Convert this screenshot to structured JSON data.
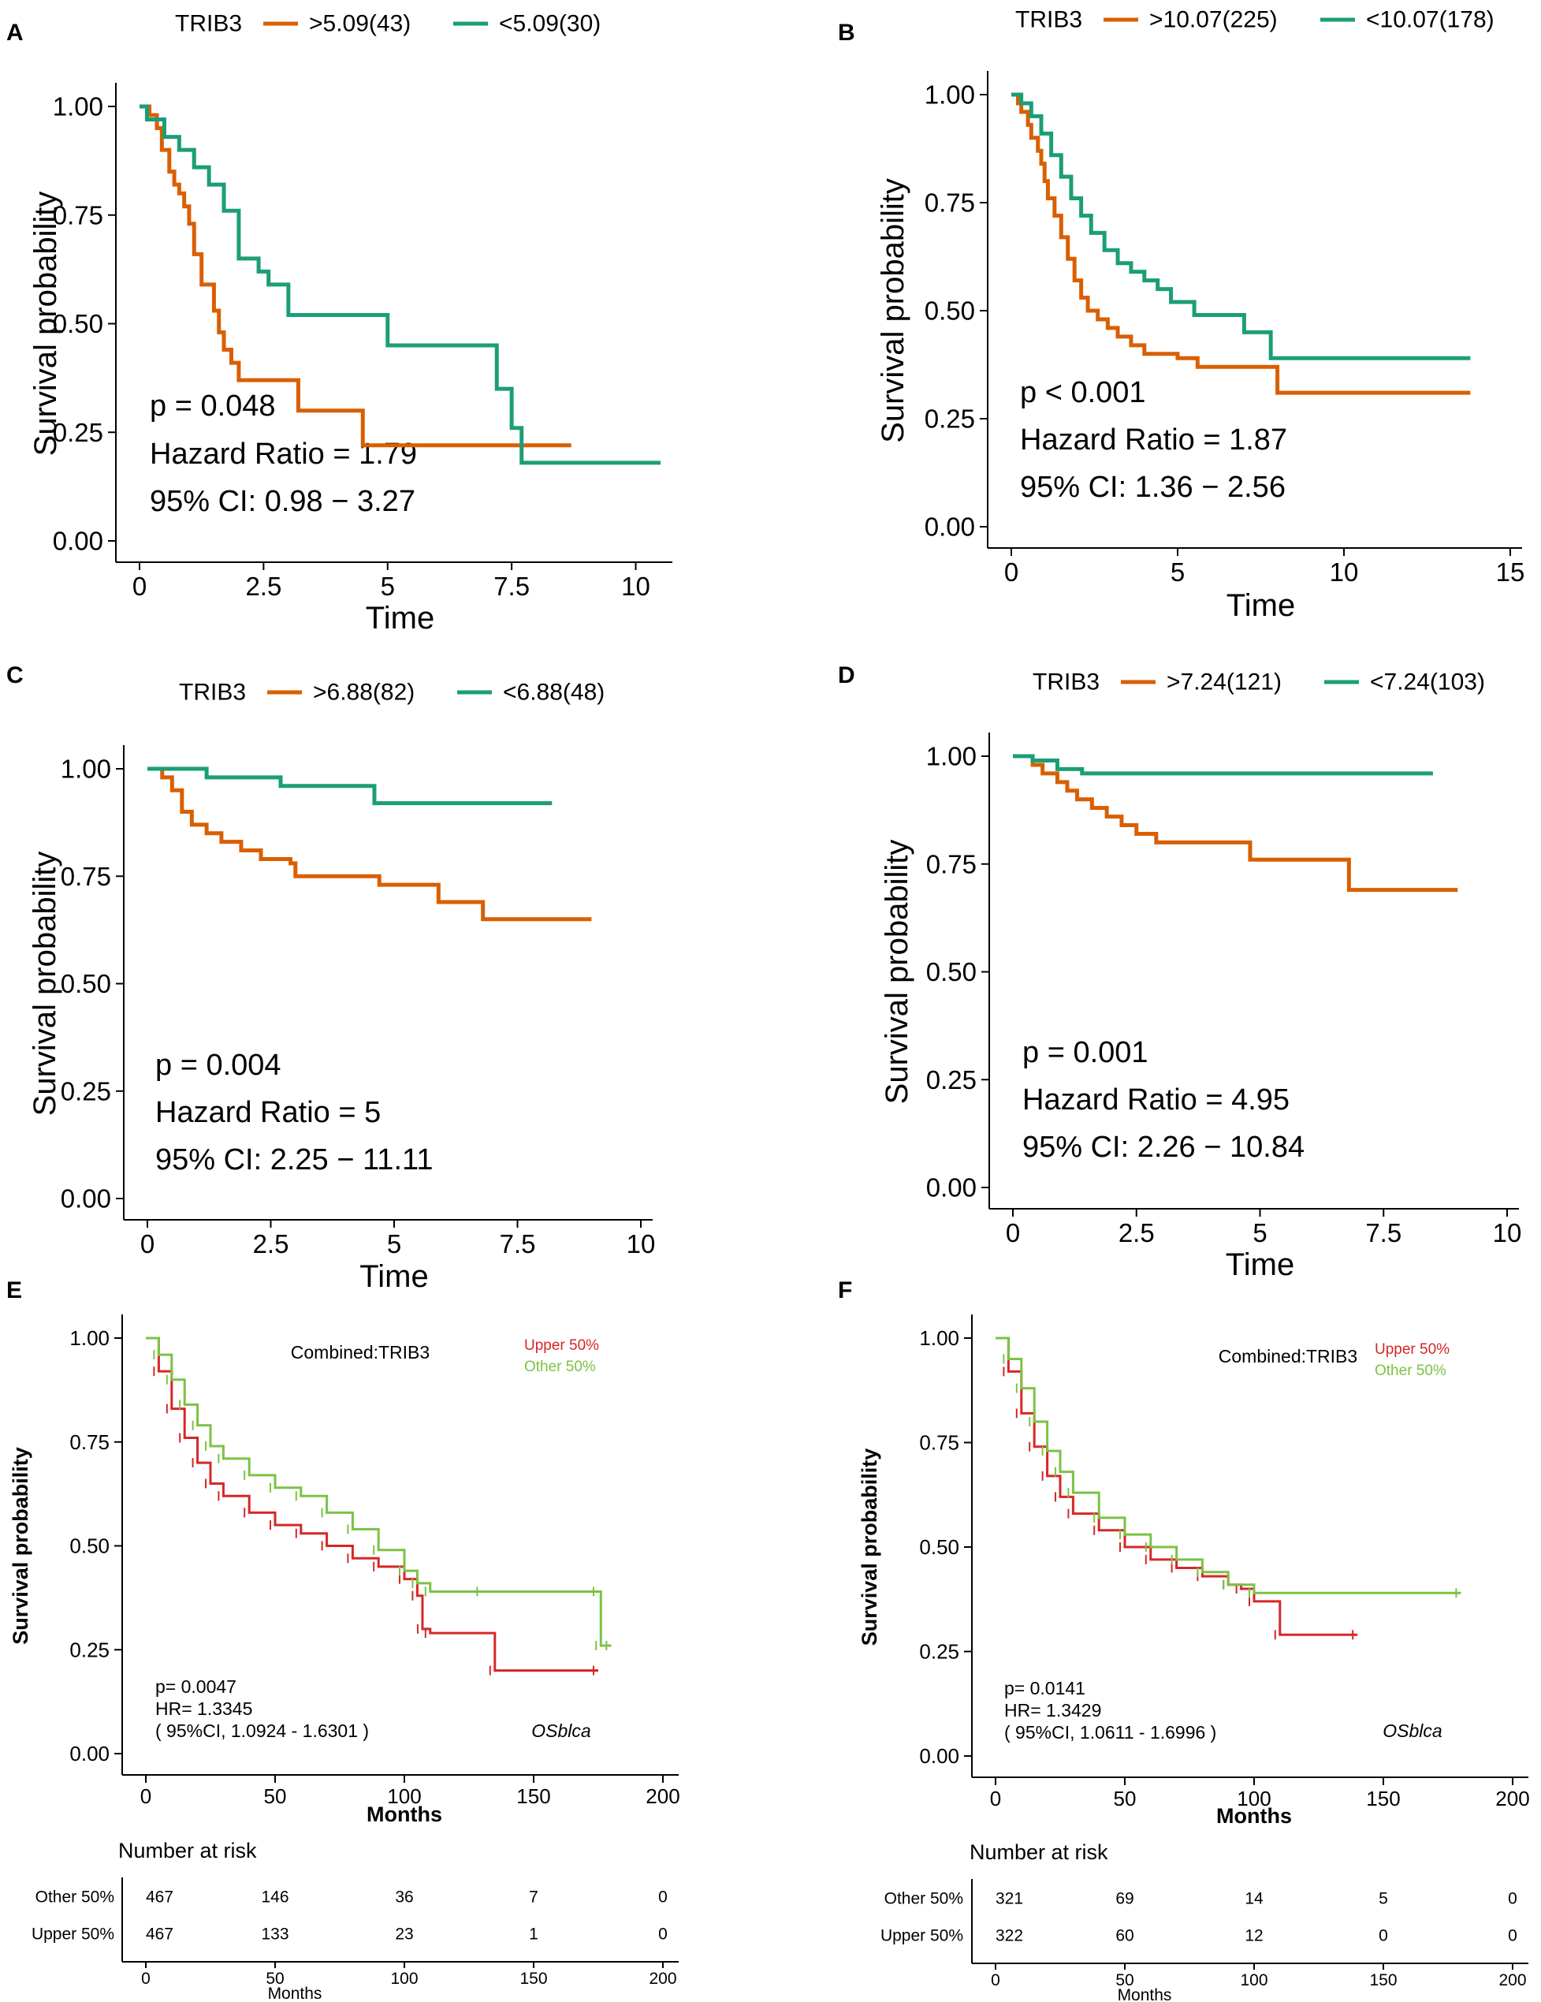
{
  "colors": {
    "high": "#D95F02",
    "low": "#1B9E77",
    "upper": "#D62728",
    "other": "#7CC243"
  },
  "chart_data": [
    {
      "panel": "A",
      "type": "line",
      "legend_title": "TRIB3",
      "series": [
        {
          "name": ">5.09(43)",
          "color": "#D95F02",
          "x": [
            0,
            0.2,
            0.35,
            0.45,
            0.6,
            0.7,
            0.8,
            0.9,
            1.0,
            1.1,
            1.25,
            1.5,
            1.6,
            1.7,
            1.85,
            2.0,
            2.2,
            2.5,
            3.2,
            4.5,
            8.7
          ],
          "y": [
            1.0,
            0.98,
            0.95,
            0.9,
            0.85,
            0.82,
            0.8,
            0.77,
            0.73,
            0.66,
            0.59,
            0.53,
            0.48,
            0.44,
            0.41,
            0.37,
            0.37,
            0.37,
            0.3,
            0.22,
            0.22
          ]
        },
        {
          "name": "<5.09(30)",
          "color": "#1B9E77",
          "x": [
            0,
            0.15,
            0.5,
            0.8,
            1.1,
            1.4,
            1.7,
            2.0,
            2.4,
            2.6,
            3.0,
            5.0,
            7.2,
            7.5,
            7.7,
            10.5
          ],
          "y": [
            1.0,
            0.97,
            0.93,
            0.9,
            0.86,
            0.82,
            0.76,
            0.65,
            0.62,
            0.59,
            0.52,
            0.45,
            0.35,
            0.26,
            0.18,
            0.18
          ]
        }
      ],
      "xlabel": "Time",
      "ylabel": "Survival probability",
      "xlim": [
        0,
        10.5
      ],
      "ylim": [
        0,
        1
      ],
      "xticks": [
        0,
        2.5,
        5,
        7.5,
        10
      ],
      "xtick_labels": [
        "0",
        "2.5",
        "5",
        "7.5",
        "10"
      ],
      "yticks": [
        0,
        0.25,
        0.5,
        0.75,
        1.0
      ],
      "ytick_labels": [
        "0.00",
        "0.25",
        "0.50",
        "0.75",
        "1.00"
      ],
      "annotations": [
        "p = 0.048",
        "Hazard Ratio = 1.79",
        "95% CI: 0.98 − 3.27"
      ]
    },
    {
      "panel": "B",
      "type": "line",
      "legend_title": "TRIB3",
      "series": [
        {
          "name": ">10.07(225)",
          "color": "#D95F02",
          "x": [
            0,
            0.2,
            0.3,
            0.5,
            0.6,
            0.8,
            0.9,
            1.0,
            1.1,
            1.3,
            1.5,
            1.7,
            1.9,
            2.1,
            2.3,
            2.6,
            2.9,
            3.2,
            3.6,
            4.0,
            5.0,
            5.6,
            8.0,
            13.8
          ],
          "y": [
            1.0,
            0.98,
            0.96,
            0.93,
            0.9,
            0.87,
            0.84,
            0.8,
            0.76,
            0.72,
            0.67,
            0.62,
            0.57,
            0.53,
            0.5,
            0.48,
            0.46,
            0.44,
            0.42,
            0.4,
            0.39,
            0.37,
            0.31,
            0.31
          ]
        },
        {
          "name": "<10.07(178)",
          "color": "#1B9E77",
          "x": [
            0,
            0.3,
            0.6,
            0.9,
            1.2,
            1.5,
            1.8,
            2.1,
            2.4,
            2.8,
            3.2,
            3.6,
            4.0,
            4.4,
            4.8,
            5.5,
            7.0,
            7.8,
            13.8
          ],
          "y": [
            1.0,
            0.98,
            0.95,
            0.91,
            0.86,
            0.81,
            0.76,
            0.72,
            0.68,
            0.64,
            0.61,
            0.59,
            0.57,
            0.55,
            0.52,
            0.49,
            0.45,
            0.39,
            0.39
          ]
        }
      ],
      "xlabel": "Time",
      "ylabel": "Survival probability",
      "xlim": [
        0,
        15
      ],
      "ylim": [
        0,
        1
      ],
      "xticks": [
        0,
        5,
        10,
        15
      ],
      "xtick_labels": [
        "0",
        "5",
        "10",
        "15"
      ],
      "yticks": [
        0,
        0.25,
        0.5,
        0.75,
        1.0
      ],
      "ytick_labels": [
        "0.00",
        "0.25",
        "0.50",
        "0.75",
        "1.00"
      ],
      "annotations": [
        "p < 0.001",
        "Hazard Ratio = 1.87",
        "95% CI: 1.36 − 2.56"
      ]
    },
    {
      "panel": "C",
      "type": "line",
      "legend_title": "TRIB3",
      "series": [
        {
          "name": ">6.88(82)",
          "color": "#D95F02",
          "x": [
            0,
            0.3,
            0.5,
            0.7,
            0.9,
            1.2,
            1.5,
            1.9,
            2.3,
            2.9,
            3.0,
            4.7,
            5.9,
            6.8,
            9.0
          ],
          "y": [
            1.0,
            0.98,
            0.95,
            0.9,
            0.87,
            0.85,
            0.83,
            0.81,
            0.79,
            0.78,
            0.75,
            0.73,
            0.69,
            0.65,
            0.65
          ]
        },
        {
          "name": "<6.88(48)",
          "color": "#1B9E77",
          "x": [
            0,
            1.2,
            2.7,
            4.6,
            8.2
          ],
          "y": [
            1.0,
            0.98,
            0.96,
            0.92,
            0.92
          ]
        }
      ],
      "xlabel": "Time",
      "ylabel": "Survival probability",
      "xlim": [
        0,
        10
      ],
      "ylim": [
        0,
        1
      ],
      "xticks": [
        0,
        2.5,
        5,
        7.5,
        10
      ],
      "xtick_labels": [
        "0",
        "2.5",
        "5",
        "7.5",
        "10"
      ],
      "yticks": [
        0,
        0.25,
        0.5,
        0.75,
        1.0
      ],
      "ytick_labels": [
        "0.00",
        "0.25",
        "0.50",
        "0.75",
        "1.00"
      ],
      "annotations": [
        "p = 0.004",
        "Hazard Ratio = 5",
        "95% CI: 2.25 − 11.11"
      ]
    },
    {
      "panel": "D",
      "type": "line",
      "legend_title": "TRIB3",
      "series": [
        {
          "name": ">7.24(121)",
          "color": "#D95F02",
          "x": [
            0,
            0.4,
            0.6,
            0.9,
            1.1,
            1.3,
            1.6,
            1.9,
            2.2,
            2.5,
            2.9,
            3.2,
            4.8,
            6.8,
            9.0
          ],
          "y": [
            1.0,
            0.98,
            0.96,
            0.94,
            0.92,
            0.9,
            0.88,
            0.86,
            0.84,
            0.82,
            0.8,
            0.8,
            0.76,
            0.69,
            0.69
          ]
        },
        {
          "name": "<7.24(103)",
          "color": "#1B9E77",
          "x": [
            0,
            0.4,
            0.9,
            1.4,
            8.5
          ],
          "y": [
            1.0,
            0.99,
            0.97,
            0.96,
            0.96
          ]
        }
      ],
      "xlabel": "Time",
      "ylabel": "Survival probability",
      "xlim": [
        0,
        10
      ],
      "ylim": [
        0,
        1
      ],
      "xticks": [
        0,
        2.5,
        5,
        7.5,
        10
      ],
      "xtick_labels": [
        "0",
        "2.5",
        "5",
        "7.5",
        "10"
      ],
      "yticks": [
        0,
        0.25,
        0.5,
        0.75,
        1.0
      ],
      "ytick_labels": [
        "0.00",
        "0.25",
        "0.50",
        "0.75",
        "1.00"
      ],
      "annotations": [
        "p = 0.001",
        "Hazard Ratio = 4.95",
        "95% CI: 2.26 − 10.84"
      ]
    },
    {
      "panel": "E",
      "type": "line",
      "title": "Combined:TRIB3",
      "dataset_label": "OSblca",
      "series": [
        {
          "name": "Upper 50%",
          "color": "#D62728",
          "x": [
            0,
            5,
            10,
            15,
            20,
            25,
            30,
            40,
            50,
            60,
            70,
            80,
            90,
            100,
            105,
            107,
            110,
            135,
            175
          ],
          "y": [
            1.0,
            0.92,
            0.83,
            0.76,
            0.7,
            0.65,
            0.62,
            0.58,
            0.55,
            0.53,
            0.5,
            0.47,
            0.45,
            0.42,
            0.38,
            0.3,
            0.29,
            0.2,
            0.2
          ]
        },
        {
          "name": "Other  50%",
          "color": "#7CC243",
          "x": [
            0,
            5,
            10,
            15,
            20,
            25,
            30,
            40,
            50,
            60,
            70,
            80,
            90,
            100,
            105,
            110,
            130,
            175,
            176,
            180
          ],
          "y": [
            1.0,
            0.96,
            0.9,
            0.84,
            0.79,
            0.74,
            0.71,
            0.67,
            0.64,
            0.62,
            0.58,
            0.54,
            0.49,
            0.44,
            0.41,
            0.39,
            0.39,
            0.39,
            0.26,
            0.26
          ]
        }
      ],
      "xlabel": "Months",
      "ylabel": "Survival probability",
      "xlim": [
        0,
        200
      ],
      "ylim": [
        0,
        1
      ],
      "xticks": [
        0,
        50,
        100,
        150,
        200
      ],
      "xtick_labels": [
        "0",
        "50",
        "100",
        "150",
        "200"
      ],
      "yticks": [
        0,
        0.25,
        0.5,
        0.75,
        1.0
      ],
      "ytick_labels": [
        "0.00",
        "0.25",
        "0.50",
        "0.75",
        "1.00"
      ],
      "annotations": [
        "p= 0.0047",
        "HR= 1.3345",
        "( 95%CI, 1.0924 - 1.6301 )"
      ],
      "risk_table": {
        "title": "Number at risk",
        "xlabel": "Months",
        "rows": [
          {
            "label": "Other  50%",
            "values": [
              "467",
              "146",
              "36",
              "7",
              "0"
            ]
          },
          {
            "label": "Upper 50%",
            "values": [
              "467",
              "133",
              "23",
              "1",
              "0"
            ]
          }
        ]
      }
    },
    {
      "panel": "F",
      "type": "line",
      "title": "Combined:TRIB3",
      "dataset_label": "OSblca",
      "series": [
        {
          "name": "Upper 50%",
          "color": "#D62728",
          "x": [
            0,
            5,
            10,
            15,
            20,
            25,
            30,
            40,
            50,
            60,
            70,
            80,
            90,
            95,
            100,
            110,
            140
          ],
          "y": [
            1.0,
            0.92,
            0.82,
            0.74,
            0.67,
            0.62,
            0.58,
            0.54,
            0.5,
            0.47,
            0.45,
            0.43,
            0.41,
            0.4,
            0.37,
            0.29,
            0.29
          ]
        },
        {
          "name": "Other  50%",
          "color": "#7CC243",
          "x": [
            0,
            5,
            10,
            15,
            20,
            25,
            30,
            40,
            50,
            60,
            70,
            80,
            90,
            100,
            180
          ],
          "y": [
            1.0,
            0.95,
            0.88,
            0.8,
            0.73,
            0.68,
            0.63,
            0.57,
            0.53,
            0.5,
            0.47,
            0.44,
            0.41,
            0.39,
            0.39
          ]
        }
      ],
      "xlabel": "Months",
      "ylabel": "Survival probability",
      "xlim": [
        0,
        200
      ],
      "ylim": [
        0,
        1
      ],
      "xticks": [
        0,
        50,
        100,
        150,
        200
      ],
      "xtick_labels": [
        "0",
        "50",
        "100",
        "150",
        "200"
      ],
      "yticks": [
        0,
        0.25,
        0.5,
        0.75,
        1.0
      ],
      "ytick_labels": [
        "0.00",
        "0.25",
        "0.50",
        "0.75",
        "1.00"
      ],
      "annotations": [
        "p= 0.0141",
        "HR= 1.3429",
        "( 95%CI, 1.0611 - 1.6996 )"
      ],
      "risk_table": {
        "title": "Number at risk",
        "xlabel": "Months",
        "rows": [
          {
            "label": "Other  50%",
            "values": [
              "321",
              "69",
              "14",
              "5",
              "0"
            ]
          },
          {
            "label": "Upper 50%",
            "values": [
              "322",
              "60",
              "12",
              "0",
              "0"
            ]
          }
        ]
      }
    }
  ]
}
